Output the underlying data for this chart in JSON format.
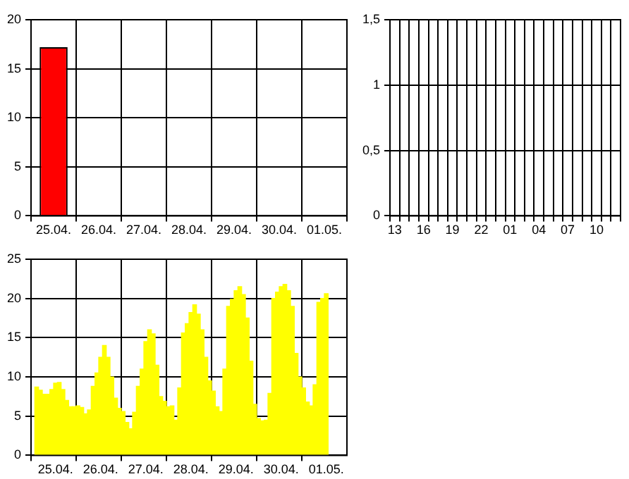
{
  "chart_data": [
    {
      "type": "bar",
      "categories": [
        "25.04.",
        "26.04.",
        "27.04.",
        "28.04.",
        "29.04.",
        "30.04.",
        "01.05."
      ],
      "values": [
        17.2,
        0,
        0,
        0,
        0,
        0,
        0
      ],
      "color": "#ff0000",
      "ylim": [
        0,
        20
      ],
      "yticks": [
        0,
        5,
        10,
        15,
        20
      ],
      "grid": true
    },
    {
      "type": "bar",
      "categories": [
        "13",
        null,
        null,
        "16",
        null,
        null,
        "19",
        null,
        null,
        "22",
        null,
        null,
        "01",
        null,
        null,
        "04",
        null,
        null,
        "07",
        null,
        null,
        "10",
        null,
        null
      ],
      "values": [
        0,
        0,
        0,
        0,
        0,
        0,
        0,
        0,
        0,
        0,
        0,
        0,
        0,
        0,
        0,
        0,
        0,
        0,
        0,
        0,
        0,
        0,
        0,
        0
      ],
      "ylim": [
        0,
        1.5
      ],
      "yticks": [
        0,
        {
          "value": 0.5,
          "label": "0,5"
        },
        1,
        {
          "value": 1.5,
          "label": "1,5"
        }
      ],
      "grid": true
    },
    {
      "type": "bar",
      "color": "#ffff00",
      "ylim": [
        0,
        25
      ],
      "yticks": [
        0,
        5,
        10,
        15,
        20,
        25
      ],
      "grid": true,
      "categories": [
        null,
        null,
        null,
        null,
        null,
        null,
        "25.04.",
        null,
        null,
        null,
        null,
        null,
        null,
        null,
        null,
        null,
        null,
        null,
        "26.04.",
        null,
        null,
        null,
        null,
        null,
        null,
        null,
        null,
        null,
        null,
        null,
        "27.04.",
        null,
        null,
        null,
        null,
        null,
        null,
        null,
        null,
        null,
        null,
        null,
        "28.04.",
        null,
        null,
        null,
        null,
        null,
        null,
        null,
        null,
        null,
        null,
        null,
        "29.04.",
        null,
        null,
        null,
        null,
        null,
        null,
        null,
        null,
        null,
        null,
        null,
        "30.04.",
        null,
        null,
        null,
        null,
        null,
        null,
        null,
        null,
        null,
        null,
        null,
        "01.05.",
        null,
        null,
        null,
        null,
        null
      ],
      "values": [
        null,
        8.7,
        8.3,
        7.8,
        7.8,
        8.4,
        9.2,
        9.3,
        8.4,
        7.0,
        6.2,
        6.2,
        6.3,
        6.1,
        5.3,
        5.8,
        8.8,
        10.5,
        12.5,
        14,
        12.5,
        10,
        7.3,
        6.0,
        5.6,
        4.2,
        3.4,
        5.5,
        8.8,
        11,
        14.5,
        16,
        15.5,
        11.5,
        7.5,
        6.9,
        6.2,
        6.3,
        4.5,
        8.6,
        15.6,
        16.8,
        18.2,
        19.2,
        18,
        16,
        12.5,
        9.5,
        8.2,
        6.2,
        5.6,
        11,
        19,
        19.9,
        21,
        21.5,
        20.5,
        17.5,
        12,
        6.5,
        4.7,
        4.4,
        4.5,
        7.9,
        20,
        20.8,
        21.5,
        21.8,
        21,
        19,
        13,
        10,
        8.6,
        6.8,
        6.3,
        9,
        19.5,
        20,
        20.6,
        null,
        null,
        null,
        null,
        null
      ]
    }
  ]
}
